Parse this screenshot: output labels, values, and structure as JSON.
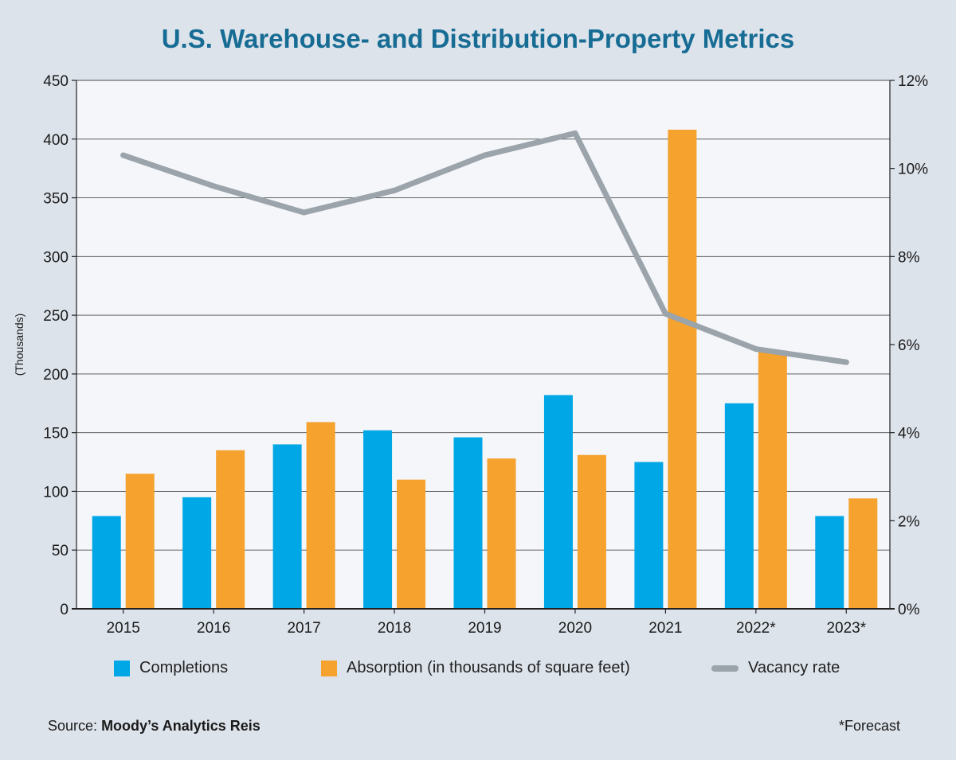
{
  "chart_data": {
    "type": "bar",
    "title": "U.S. Warehouse- and Distribution-Property Metrics",
    "ylabel": "(Thousands)",
    "ylim": [
      0,
      450
    ],
    "yticks": [
      "0",
      "50",
      "100",
      "150",
      "200",
      "250",
      "300",
      "350",
      "400",
      "450"
    ],
    "y2lim": [
      0,
      12
    ],
    "y2ticks": [
      "0%",
      "2%",
      "4%",
      "6%",
      "8%",
      "10%",
      "12%"
    ],
    "categories": [
      "2015",
      "2016",
      "2017",
      "2018",
      "2019",
      "2020",
      "2021",
      "2022*",
      "2023*"
    ],
    "grid": true,
    "legend_position": "bottom",
    "series": [
      {
        "name": "Completions",
        "kind": "bar",
        "axis": "left",
        "color": "#00a7e6",
        "values": [
          79,
          95,
          140,
          152,
          146,
          182,
          125,
          175,
          79
        ]
      },
      {
        "name": "Absorption (in thousands of square feet)",
        "kind": "bar",
        "axis": "left",
        "color": "#f5a22f",
        "values": [
          115,
          135,
          159,
          110,
          128,
          131,
          408,
          220,
          94
        ]
      },
      {
        "name": "Vacancy rate",
        "kind": "line",
        "axis": "right",
        "color": "#9ba3ab",
        "values": [
          10.3,
          9.6,
          9.0,
          9.5,
          10.3,
          10.8,
          6.7,
          5.9,
          5.6
        ]
      }
    ]
  },
  "footer": {
    "source_label": "Source:",
    "source_name": "Moody’s Analytics Reis",
    "note": "*Forecast"
  }
}
